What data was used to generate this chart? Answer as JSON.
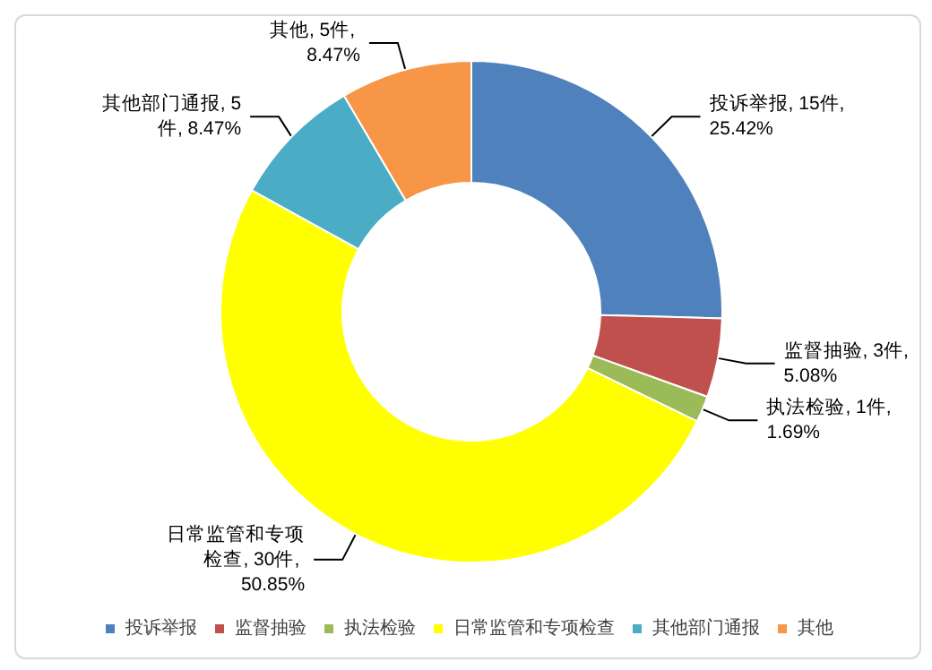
{
  "chart_data": {
    "type": "donut",
    "categories": [
      "投诉举报",
      "监督抽验",
      "执法检验",
      "日常监管和专项检查",
      "其他部门通报",
      "其他"
    ],
    "values": [
      15,
      3,
      1,
      30,
      5,
      5
    ],
    "value_labels": [
      "投诉举报, 15件, 25.42%",
      "监督抽验, 3件, 5.08%",
      "执法检验, 1件, 1.69%",
      "日常监管和专项检查, 30件, 50.85%",
      "其他部门通报, 5件, 8.47%",
      "其他, 5件, 8.47%"
    ],
    "colors": [
      "#4f81bd",
      "#c0504d",
      "#9bbb59",
      "#ffff00",
      "#4bacc6",
      "#f79646"
    ],
    "legend": "bottom"
  }
}
